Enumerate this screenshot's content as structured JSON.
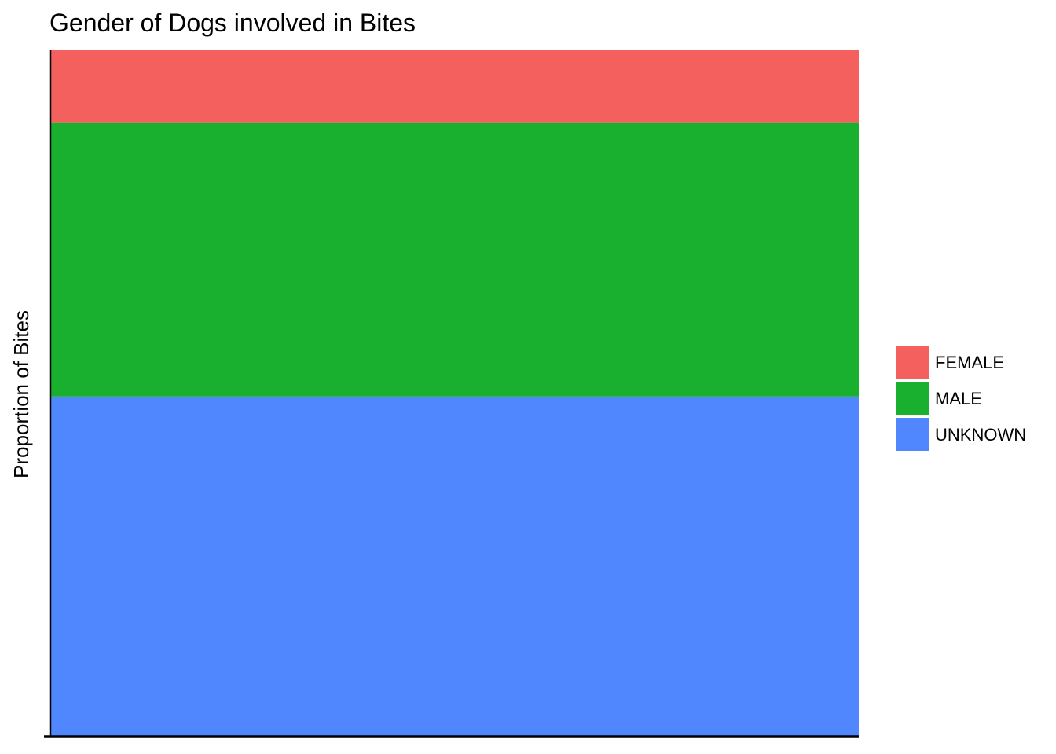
{
  "chart_data": {
    "type": "bar",
    "stacked": true,
    "position": "fill",
    "title": "Gender of Dogs involved in Bites",
    "xlabel": "",
    "ylabel": "Proportion of Bites",
    "categories": [
      ""
    ],
    "series": [
      {
        "name": "FEMALE",
        "values": [
          0.105
        ],
        "color": "#F3605D"
      },
      {
        "name": "MALE",
        "values": [
          0.4
        ],
        "color": "#19B02F"
      },
      {
        "name": "UNKNOWN",
        "values": [
          0.495
        ],
        "color": "#5087FF"
      }
    ],
    "ylim": [
      0,
      1
    ],
    "grid": false,
    "legend": {
      "placement": "right",
      "entries": [
        "FEMALE",
        "MALE",
        "UNKNOWN"
      ]
    }
  }
}
